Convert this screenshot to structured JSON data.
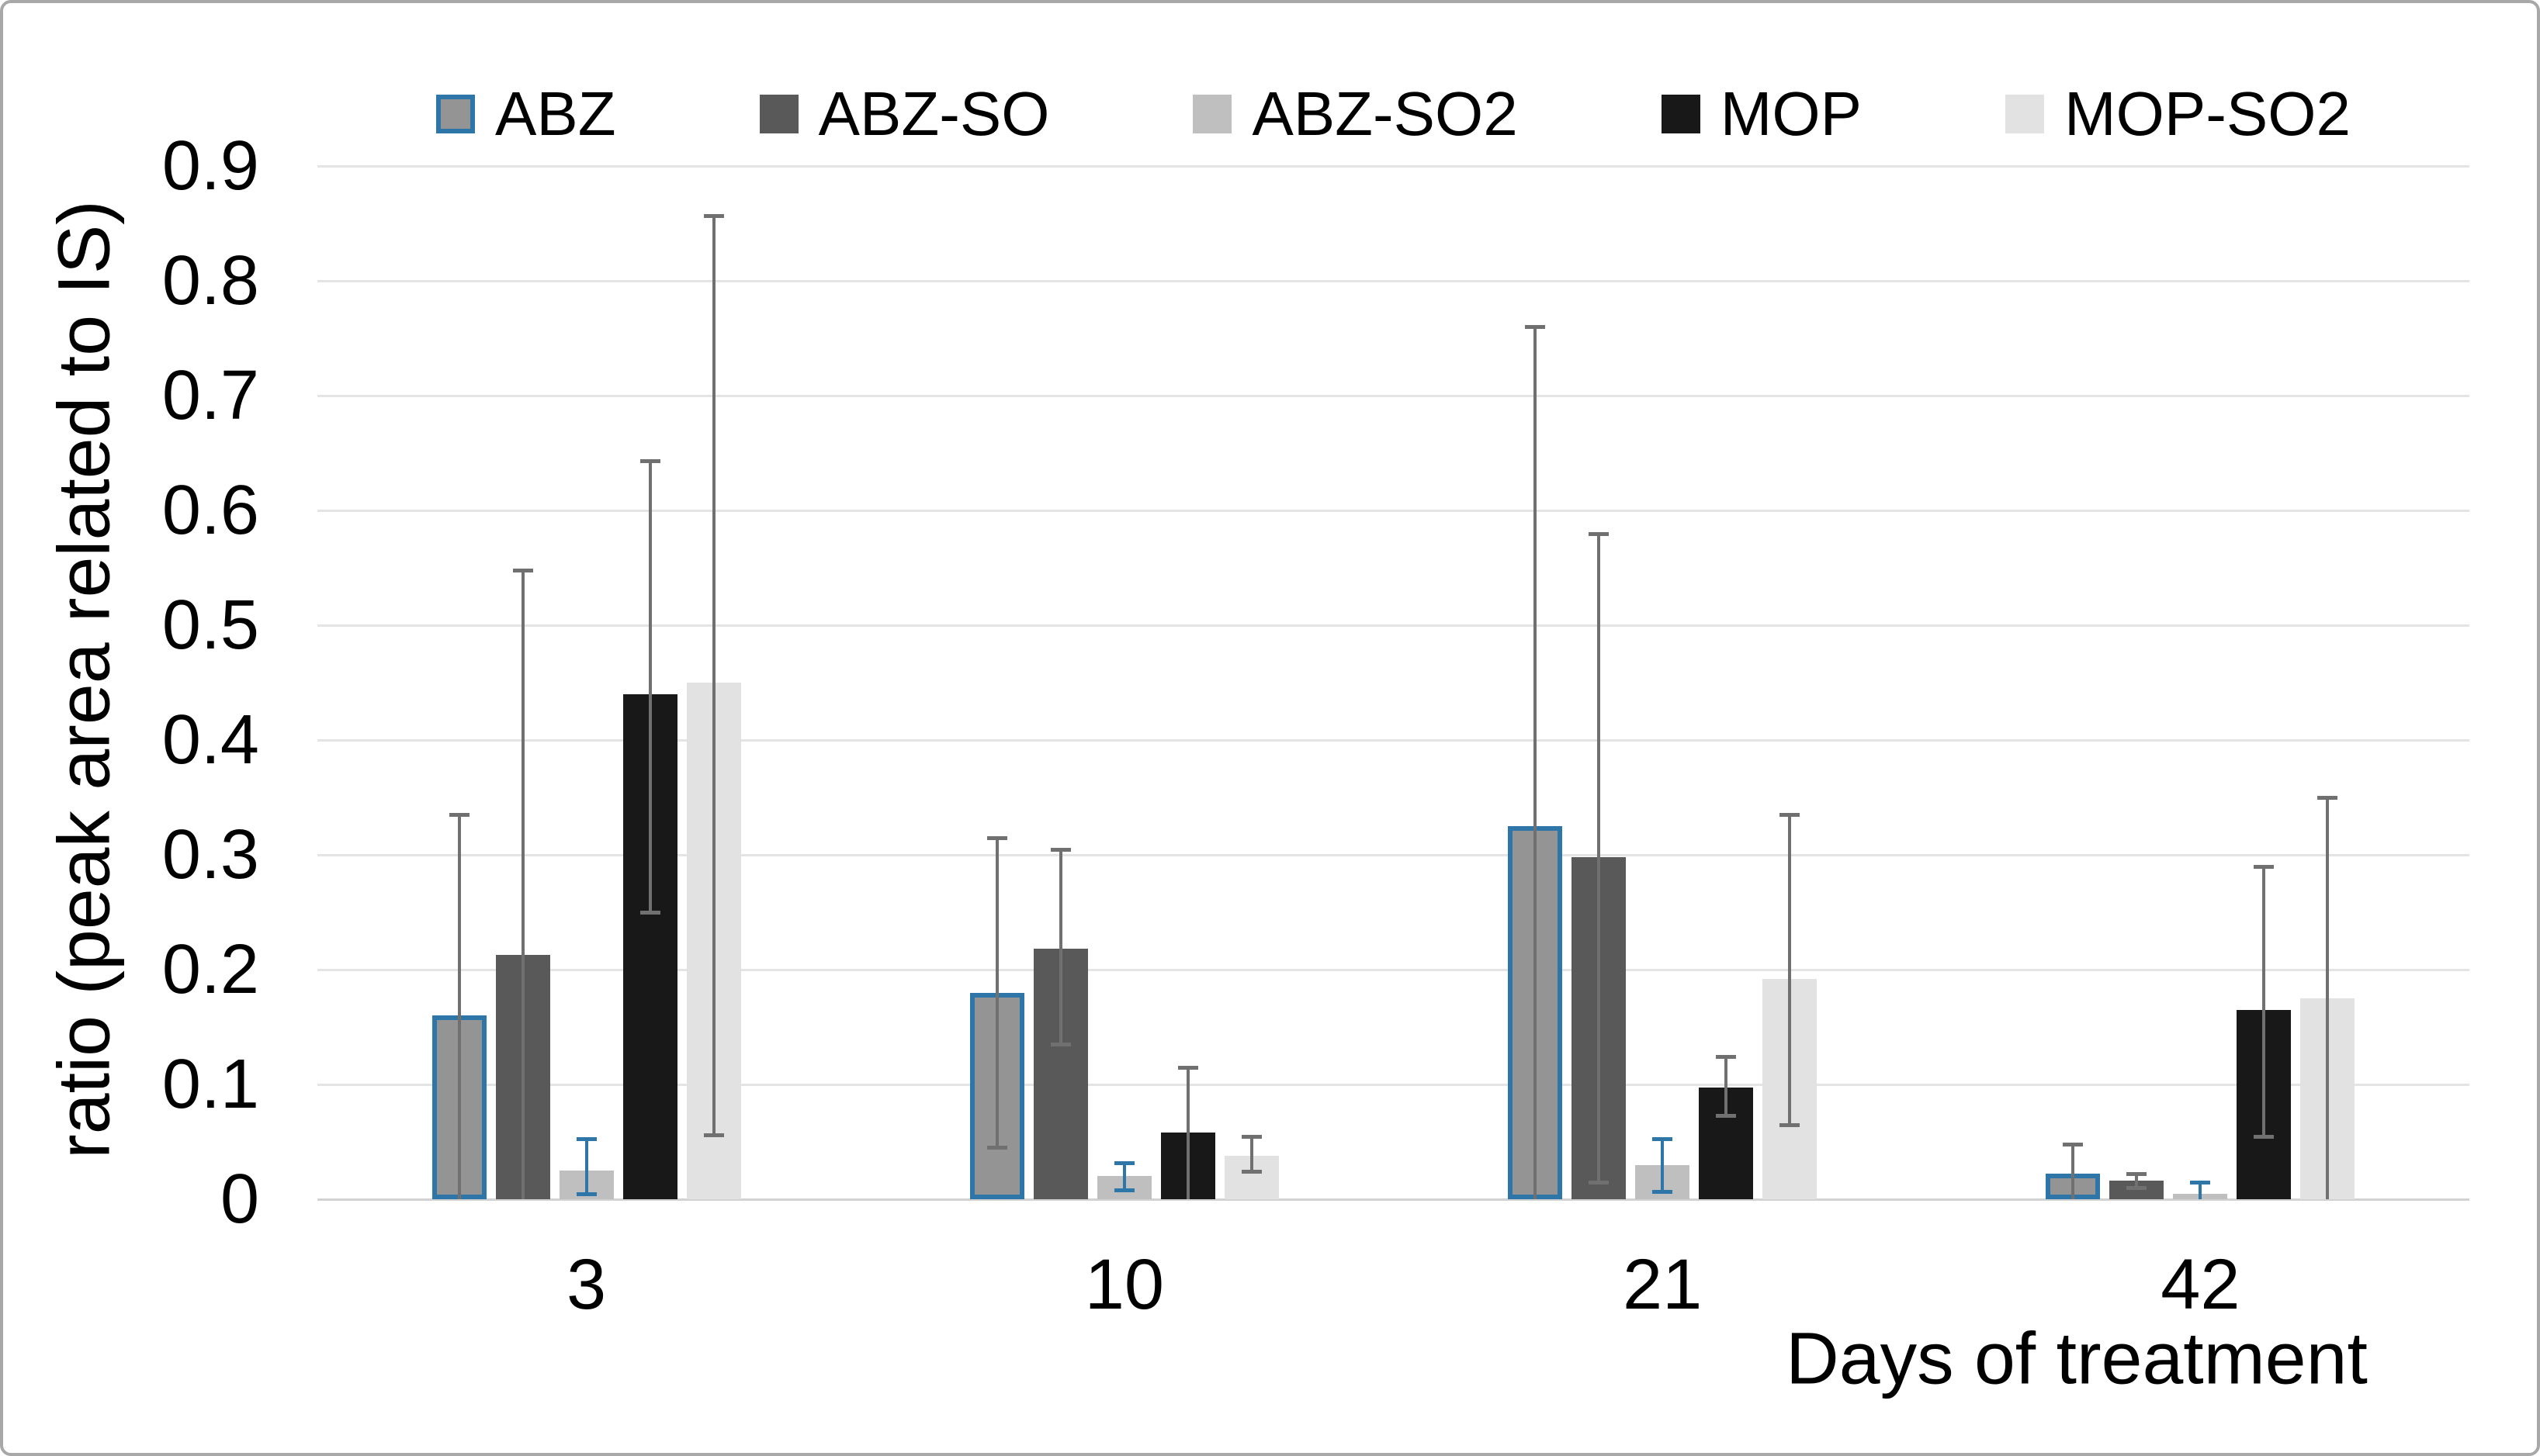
{
  "colors": {
    "background": "#ffffff",
    "frame_border": "#a8a8a8",
    "gridline": "#e4e4e4",
    "axis_line": "#d2d2d2",
    "text": "#000000",
    "error_gray": "#707070",
    "accent_blue": "#2e75a8"
  },
  "chart_data": {
    "type": "bar",
    "title": "",
    "categories": [
      "3",
      "10",
      "21",
      "42"
    ],
    "series": [
      {
        "name": "ABZ",
        "color": "#949494",
        "border_color": "#2e75a8",
        "error_color": "#707070",
        "values": [
          0.16,
          0.18,
          0.325,
          0.022
        ],
        "error_high": [
          0.335,
          0.315,
          0.76,
          0.048
        ],
        "error_low": [
          0,
          0.045,
          0,
          0
        ]
      },
      {
        "name": "ABZ-SO",
        "color": "#595959",
        "border_color": null,
        "error_color": "#707070",
        "values": [
          0.213,
          0.218,
          0.298,
          0.016
        ],
        "error_high": [
          0.548,
          0.305,
          0.58,
          0.022
        ],
        "error_low": [
          0,
          0.135,
          0.015,
          0.01
        ]
      },
      {
        "name": "ABZ-SO2",
        "color": "#bfbfbf",
        "border_color": null,
        "error_color": "#2e75a8",
        "values": [
          0.025,
          0.02,
          0.03,
          0.005
        ],
        "error_high": [
          0.053,
          0.032,
          0.053,
          0.015
        ],
        "error_low": [
          0.005,
          0.008,
          0.007,
          0
        ]
      },
      {
        "name": "MOP",
        "color": "#181818",
        "border_color": null,
        "error_color": "#707070",
        "values": [
          0.44,
          0.058,
          0.097,
          0.165
        ],
        "error_high": [
          0.643,
          0.115,
          0.124,
          0.29
        ],
        "error_low": [
          0.25,
          0,
          0.073,
          0.055
        ]
      },
      {
        "name": "MOP-SO2",
        "color": "#e2e2e2",
        "border_color": null,
        "error_color": "#707070",
        "values": [
          0.45,
          0.038,
          0.192,
          0.175
        ],
        "error_high": [
          0.857,
          0.055,
          0.335,
          0.35
        ],
        "error_low": [
          0.056,
          0.024,
          0.065,
          0
        ]
      }
    ],
    "xlabel": "Days of treatment",
    "ylabel": "ratio (peak area related to IS)",
    "ylim": [
      0,
      0.9
    ],
    "yticks": [
      "0",
      "0.1",
      "0.2",
      "0.3",
      "0.4",
      "0.5",
      "0.6",
      "0.7",
      "0.8",
      "0.9"
    ],
    "grid": true,
    "legend_position": "top",
    "error_bars": true
  }
}
